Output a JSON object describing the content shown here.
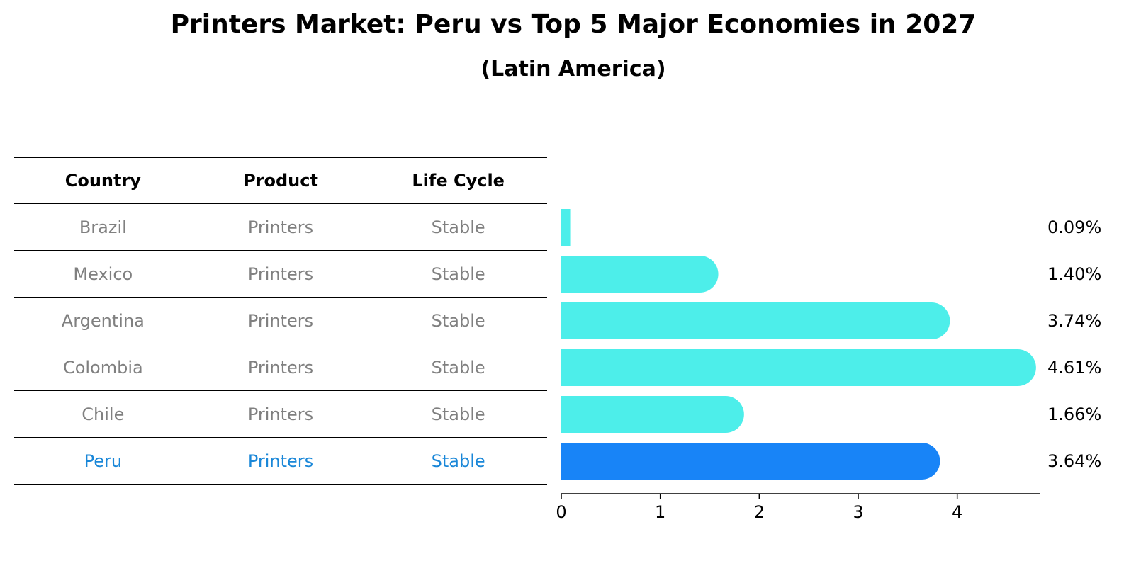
{
  "title": "Printers Market: Peru vs Top 5 Major Economies in 2027",
  "subtitle": "(Latin America)",
  "table": {
    "headers": [
      "Country",
      "Product",
      "Life Cycle"
    ],
    "rows": [
      {
        "country": "Brazil",
        "product": "Printers",
        "life_cycle": "Stable"
      },
      {
        "country": "Mexico",
        "product": "Printers",
        "life_cycle": "Stable"
      },
      {
        "country": "Argentina",
        "product": "Printers",
        "life_cycle": "Stable"
      },
      {
        "country": "Colombia",
        "product": "Printers",
        "life_cycle": "Stable"
      },
      {
        "country": "Chile",
        "product": "Printers",
        "life_cycle": "Stable"
      },
      {
        "country": "Peru",
        "product": "Printers",
        "life_cycle": "Stable"
      }
    ]
  },
  "chart_data": {
    "type": "bar",
    "orientation": "horizontal",
    "categories": [
      "Brazil",
      "Mexico",
      "Argentina",
      "Colombia",
      "Chile",
      "Peru"
    ],
    "values": [
      0.09,
      1.4,
      3.74,
      4.61,
      1.66,
      3.64
    ],
    "value_labels": [
      "0.09%",
      "1.40%",
      "3.74%",
      "4.61%",
      "1.66%",
      "3.64%"
    ],
    "highlight": "Peru",
    "xlim": [
      0,
      4.84
    ],
    "xticks": [
      0,
      1,
      2,
      3,
      4
    ],
    "colors": {
      "default": "#4deeea",
      "highlight": "#1884f7"
    }
  }
}
